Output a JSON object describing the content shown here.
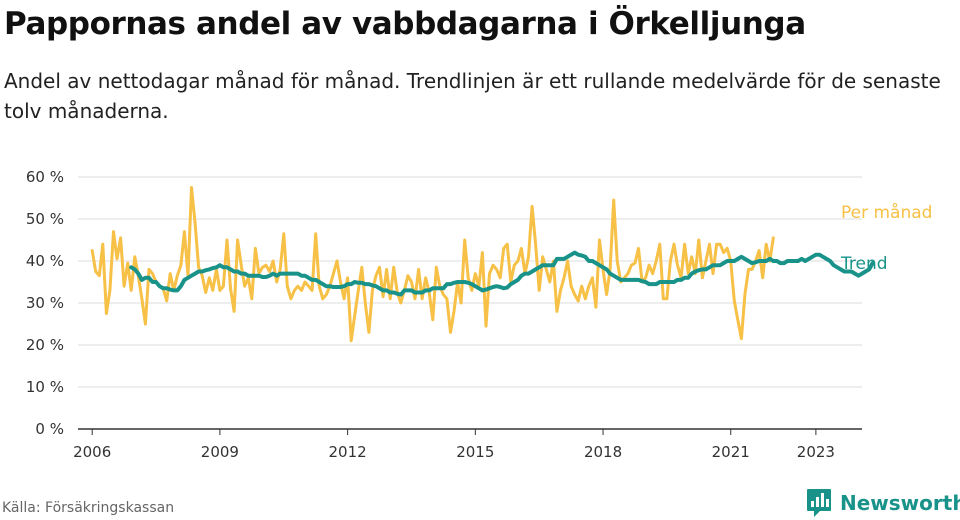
{
  "header": {
    "title": "Pappornas andel av vabbdagarna i Örkelljunga",
    "subtitle": "Andel av nettodagar månad för månad. Trendlinjen är ett rullande medelvärde för de senaste tolv månaderna."
  },
  "footer": {
    "source": "Källa: Försäkringskassan",
    "brand": "Newsworthy",
    "brand_icon": "bar-chart-speech-bubble-icon"
  },
  "colors": {
    "monthly": "#f7c046",
    "trend": "#19938a",
    "grid": "#dddddd",
    "axis": "#333333",
    "brand": "#19938a"
  },
  "chart_data": {
    "type": "line",
    "title": "Pappornas andel av vabbdagarna i Örkelljunga",
    "xlabel": "",
    "ylabel": "",
    "ylim": [
      0,
      60
    ],
    "xlim": [
      "2005-09",
      "2024-02"
    ],
    "y_ticks": [
      0,
      10,
      20,
      30,
      40,
      50,
      60
    ],
    "y_tick_labels": [
      "0 %",
      "10 %",
      "20 %",
      "30 %",
      "40 %",
      "50 %",
      "60 %"
    ],
    "x_ticks": [
      "2006-01",
      "2009-01",
      "2012-01",
      "2015-01",
      "2018-01",
      "2021-01",
      "2023-01"
    ],
    "x_tick_labels": [
      "2006",
      "2009",
      "2012",
      "2015",
      "2018",
      "2021",
      "2023"
    ],
    "grid": true,
    "legend": "inline labels at right end of lines",
    "series": [
      {
        "name": "Per månad",
        "start": "2006-01",
        "values": [
          42.5,
          37.5,
          36.5,
          44,
          27.5,
          33,
          47,
          40.5,
          45.5,
          34,
          39.5,
          33,
          41,
          36.5,
          31,
          25,
          38,
          37,
          35,
          34,
          33.5,
          30.5,
          37,
          33,
          36.5,
          39,
          47,
          36.5,
          57.5,
          49,
          38.5,
          36.5,
          32.5,
          36,
          33,
          38,
          33,
          34,
          45,
          33.5,
          28,
          45,
          39,
          34,
          36,
          31,
          43,
          37,
          38.5,
          39,
          37.5,
          40,
          35,
          38,
          46.5,
          34,
          31,
          33,
          34,
          33,
          35,
          34,
          33,
          46.5,
          34,
          31,
          32,
          34,
          37,
          40,
          35,
          31,
          36,
          21,
          27,
          33,
          38.5,
          30,
          23,
          33,
          36.5,
          38.5,
          31.5,
          38,
          31,
          38.5,
          32.5,
          30,
          33,
          36.5,
          35,
          31,
          38,
          31,
          36,
          32.5,
          26,
          38.5,
          34,
          32,
          31,
          23,
          28,
          35,
          30,
          45,
          36,
          33,
          37,
          34,
          42,
          24.5,
          37,
          39,
          38,
          36,
          43,
          44,
          35,
          39,
          40,
          43,
          37,
          41,
          53,
          44,
          33,
          41,
          38,
          35,
          40,
          28,
          33,
          36,
          40,
          34,
          32,
          30.5,
          34,
          31,
          34,
          36,
          29,
          45,
          38,
          32,
          38,
          54.5,
          40,
          35,
          36,
          37,
          39,
          39.5,
          43,
          35,
          36,
          39,
          37,
          40,
          44,
          31,
          31,
          40,
          44,
          39,
          36,
          44,
          37,
          41,
          37,
          45,
          36,
          40,
          44,
          37,
          44,
          44,
          42,
          43,
          40,
          30.5,
          26,
          21.5,
          32,
          38,
          38,
          40,
          42.5,
          36,
          44,
          40,
          45.5
        ]
      },
      {
        "name": "Trend",
        "start": "2006-12",
        "values": [
          38.5,
          38,
          37,
          35.5,
          36,
          36,
          35,
          35,
          34,
          33.5,
          33.5,
          33.2,
          33,
          33,
          34,
          35.5,
          36,
          36.5,
          37,
          37.5,
          37.5,
          37.8,
          38,
          38.3,
          38.5,
          39,
          38.5,
          38.5,
          38,
          37.5,
          37.5,
          37,
          37,
          36.5,
          36.5,
          36.5,
          36.5,
          36.2,
          36.2,
          36.5,
          37,
          36.5,
          37,
          37,
          37,
          37,
          37,
          37,
          36.5,
          36.5,
          36,
          35.5,
          35.5,
          35,
          34.5,
          34,
          34,
          33.8,
          33.8,
          33.8,
          34,
          34.5,
          34.5,
          35,
          34.8,
          34.8,
          34.5,
          34.5,
          34.2,
          34,
          33.5,
          33,
          33,
          32.5,
          32.5,
          32.2,
          32,
          33,
          33,
          33,
          32.5,
          32.5,
          32.5,
          33,
          33,
          33.5,
          33.5,
          33.5,
          33.5,
          34.5,
          34.5,
          34.8,
          35,
          35,
          35,
          34.8,
          34.5,
          34,
          33.5,
          33,
          33.2,
          33.5,
          33.8,
          34,
          33.8,
          33.5,
          33.7,
          34.5,
          35,
          35.5,
          36.5,
          37,
          37,
          37.5,
          38,
          38.5,
          39,
          39,
          39,
          39,
          40.5,
          40.5,
          40.5,
          41,
          41.5,
          42,
          41.5,
          41.3,
          41,
          40,
          40,
          39.5,
          39,
          38.5,
          38,
          37,
          36.5,
          36,
          35.5,
          35.5,
          35.5,
          35.5,
          35.5,
          35.5,
          35.2,
          35,
          34.5,
          34.5,
          34.5,
          35,
          35,
          35,
          35,
          35,
          35.5,
          35.5,
          36,
          36,
          37,
          37.5,
          37.8,
          38,
          38,
          38.5,
          39,
          39,
          39,
          39.5,
          40,
          40,
          40,
          40.5,
          41,
          40.5,
          40,
          39.5,
          39.7,
          40,
          40,
          40,
          40.5,
          40,
          40,
          39.5,
          39.5,
          40,
          40,
          40,
          40,
          40.5,
          40,
          40.5,
          41,
          41.5,
          41.5,
          41,
          40.5,
          40,
          39,
          38.5,
          38,
          37.5,
          37.5,
          37.5,
          37,
          36.5,
          37,
          37.5,
          38,
          39.5
        ]
      }
    ]
  }
}
